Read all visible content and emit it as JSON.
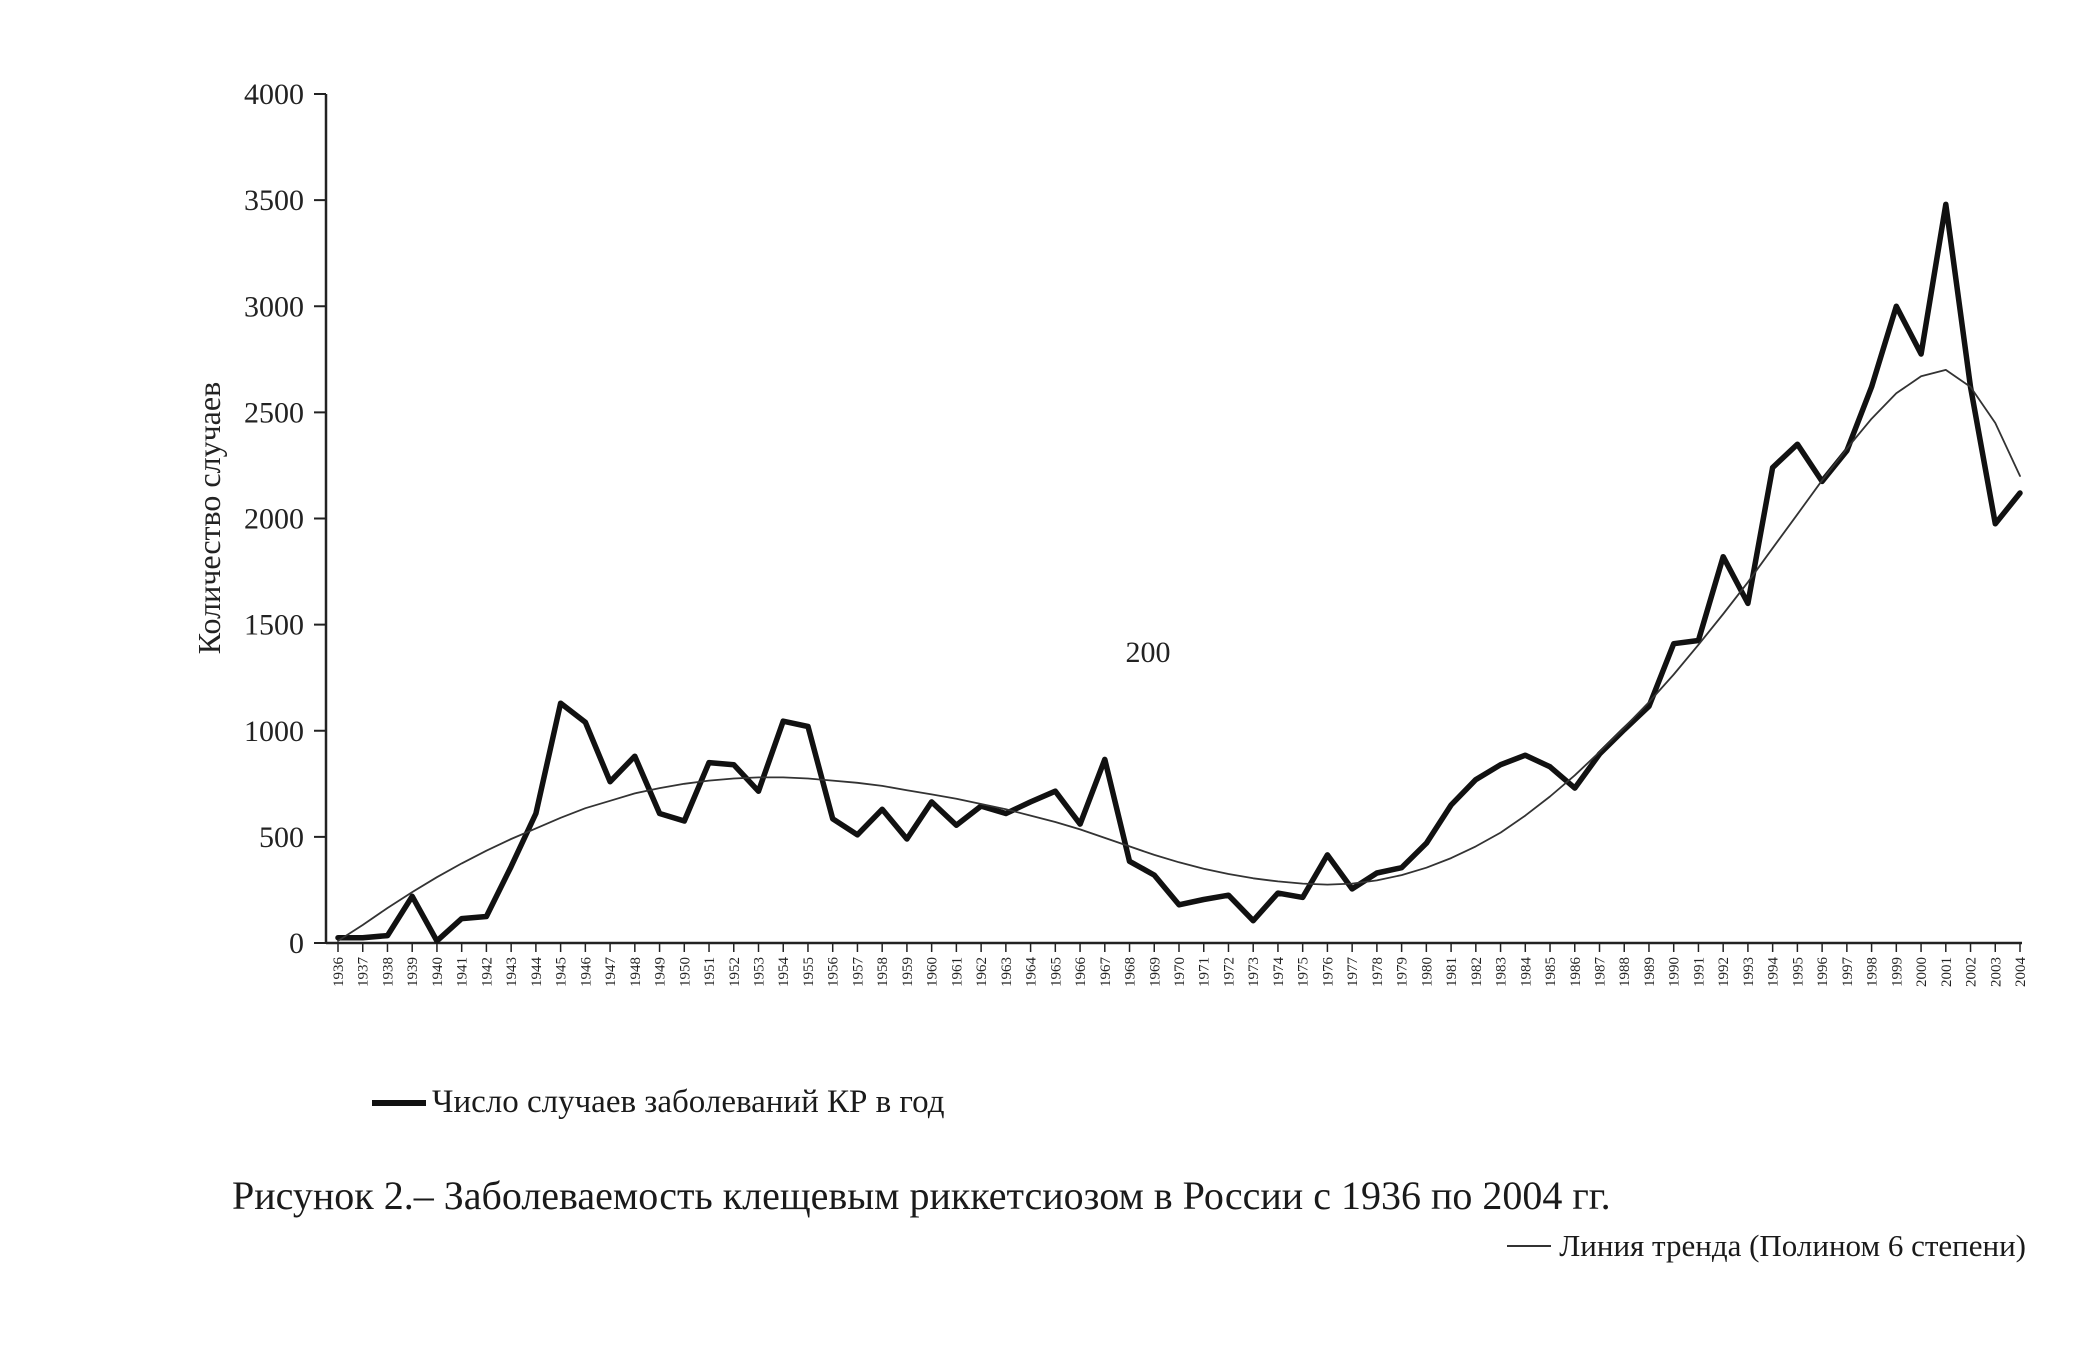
{
  "chart_data": {
    "type": "line",
    "ylabel": "Количество случаев",
    "xlabel": "",
    "ylim": [
      0,
      4000
    ],
    "yticks": [
      0,
      500,
      1000,
      1500,
      2000,
      2500,
      3000,
      3500,
      4000
    ],
    "annotation": "200",
    "x": [
      "1936",
      "1937",
      "1938",
      "1939",
      "1940",
      "1941",
      "1942",
      "1943",
      "1944",
      "1945",
      "1946",
      "1947",
      "1948",
      "1949",
      "1950",
      "1951",
      "1952",
      "1953",
      "1954",
      "1955",
      "1956",
      "1957",
      "1958",
      "1959",
      "1960",
      "1961",
      "1962",
      "1963",
      "1964",
      "1965",
      "1966",
      "1967",
      "1968",
      "1969",
      "1970",
      "1971",
      "1972",
      "1973",
      "1974",
      "1975",
      "1976",
      "1977",
      "1978",
      "1979",
      "1980",
      "1981",
      "1982",
      "1983",
      "1984",
      "1985",
      "1986",
      "1987",
      "1988",
      "1989",
      "1990",
      "1991",
      "1992",
      "1993",
      "1994",
      "1995",
      "1996",
      "1997",
      "1998",
      "1999",
      "2000",
      "2001",
      "2002",
      "2003",
      "2004"
    ],
    "series": [
      {
        "name": "Число случаев заболеваний КР в год",
        "values": [
          25,
          25,
          35,
          220,
          10,
          115,
          125,
          360,
          610,
          1130,
          1040,
          760,
          880,
          610,
          575,
          850,
          840,
          715,
          1045,
          1020,
          585,
          510,
          630,
          490,
          665,
          555,
          645,
          610,
          665,
          715,
          560,
          865,
          385,
          320,
          180,
          205,
          225,
          105,
          235,
          215,
          415,
          255,
          330,
          355,
          470,
          650,
          770,
          840,
          885,
          830,
          730,
          890,
          1005,
          1115,
          1410,
          1425,
          1820,
          1600,
          2240,
          2350,
          2175,
          2320,
          2620,
          3000,
          2775,
          3480,
          2620,
          1975,
          2120
        ]
      },
      {
        "name": "Линия тренда (Полином 6 степени)",
        "values": [
          10,
          85,
          165,
          240,
          310,
          375,
          435,
          490,
          540,
          590,
          635,
          670,
          705,
          730,
          750,
          765,
          775,
          780,
          780,
          775,
          765,
          755,
          740,
          720,
          700,
          680,
          655,
          630,
          600,
          570,
          535,
          495,
          455,
          415,
          380,
          350,
          325,
          305,
          290,
          280,
          275,
          280,
          295,
          320,
          355,
          400,
          455,
          520,
          600,
          690,
          790,
          900,
          1015,
          1135,
          1265,
          1405,
          1550,
          1700,
          1860,
          2020,
          2180,
          2330,
          2470,
          2590,
          2670,
          2700,
          2620,
          2450,
          2200
        ]
      }
    ],
    "legend": {
      "main_label": "Число случаев заболеваний КР в год",
      "trend_label": "Линия тренда (Полином 6 степени)"
    }
  },
  "caption": "Рисунок 2.– Заболеваемость клещевым риккетсиозом в России с 1936 по 2004 гг."
}
